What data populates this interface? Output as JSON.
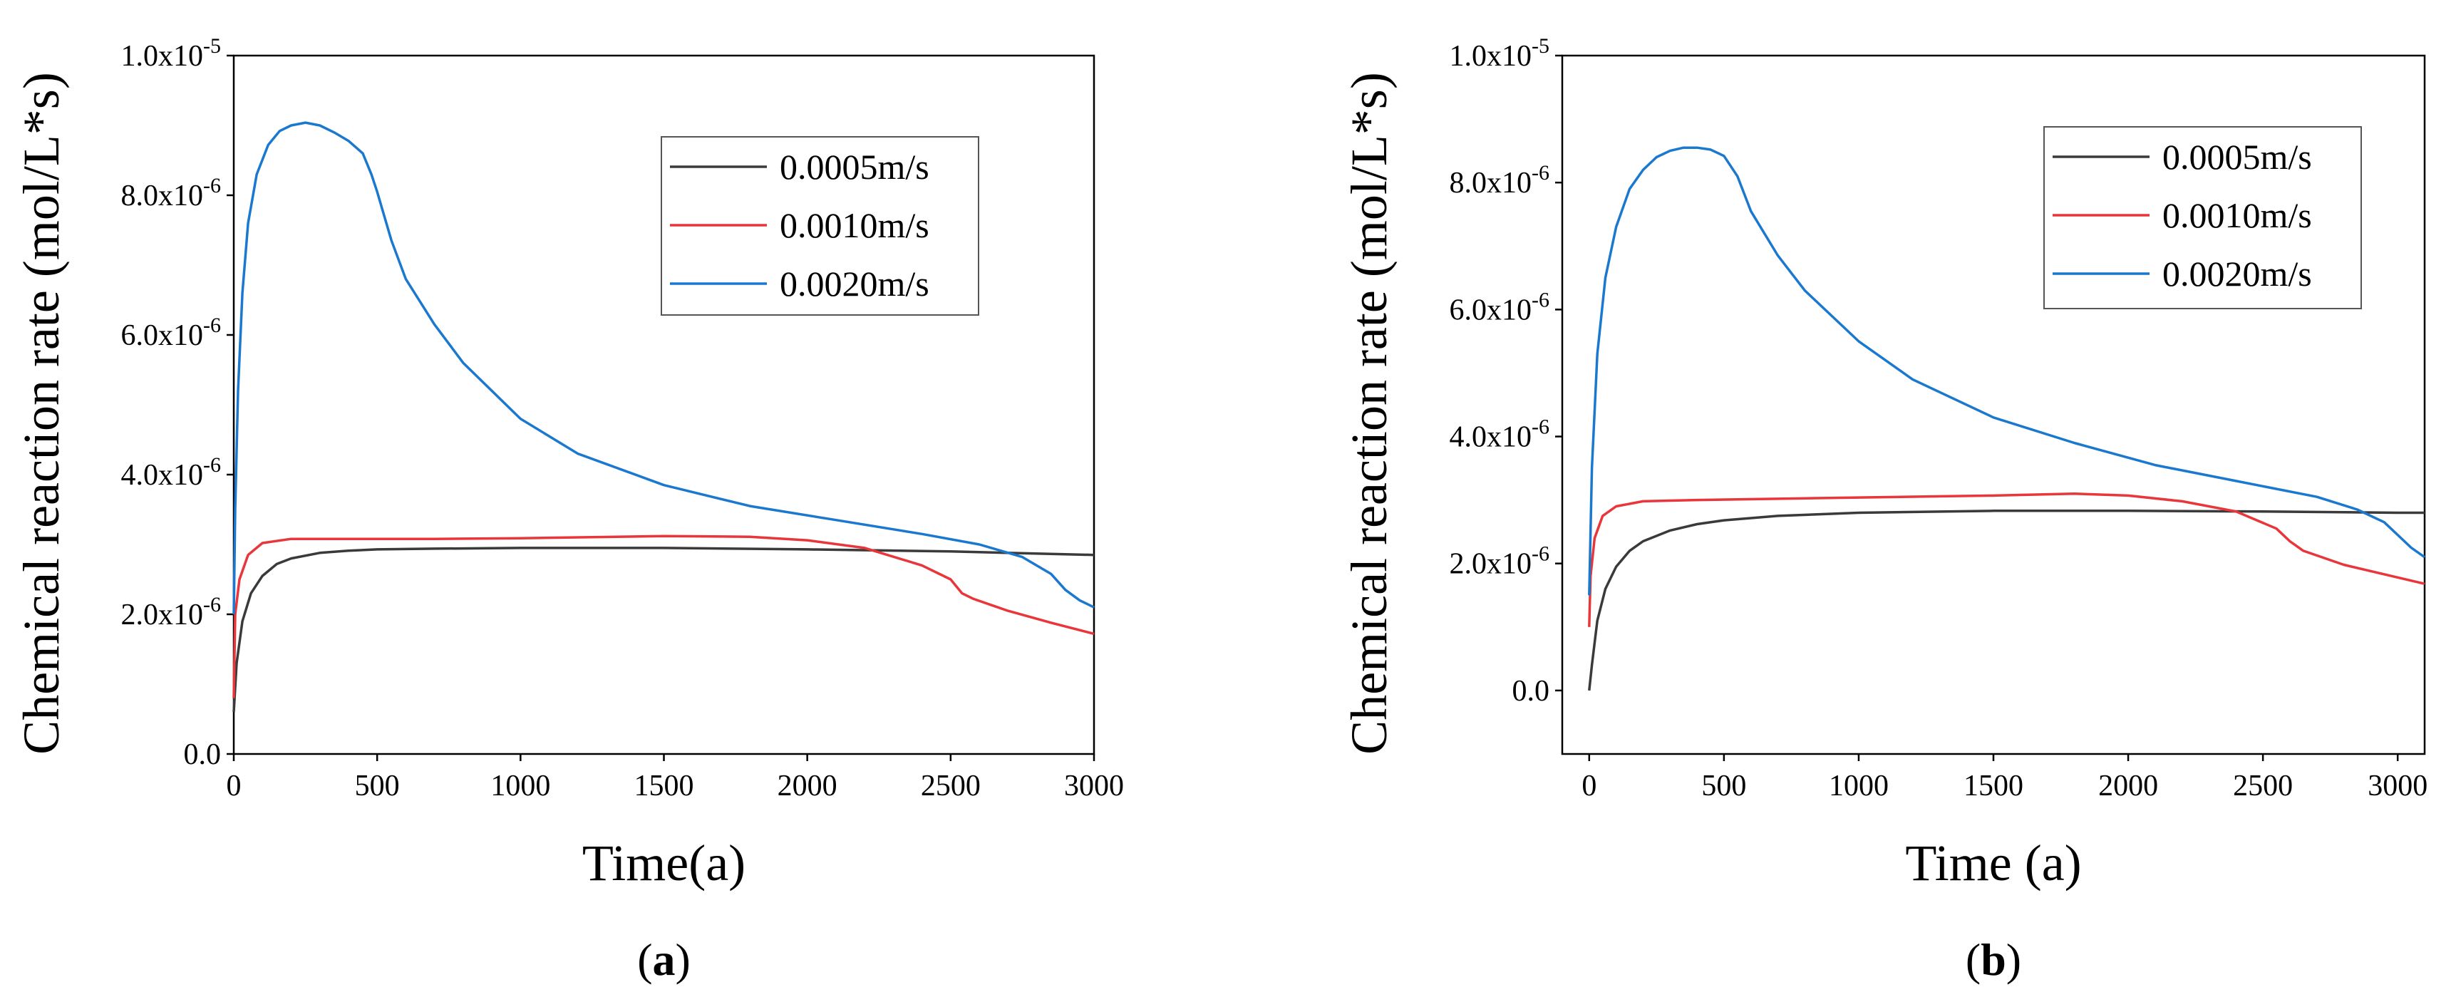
{
  "chart_data": [
    {
      "type": "line",
      "panel": "a",
      "panel_label_open": "(",
      "panel_label_letter": "a",
      "panel_label_close": ")",
      "xlabel": "Time(a)",
      "ylabel": "Chemical reaction rate (mol/L*s)",
      "xlim": [
        0,
        3000
      ],
      "ylim": [
        0,
        1e-05
      ],
      "xticks": [
        "0",
        "500",
        "1000",
        "1500",
        "2000",
        "2500",
        "3000"
      ],
      "yticks": [
        {
          "mant": "0.0",
          "exp": ""
        },
        {
          "mant": "2.0x10",
          "exp": "-6"
        },
        {
          "mant": "4.0x10",
          "exp": "-6"
        },
        {
          "mant": "6.0x10",
          "exp": "-6"
        },
        {
          "mant": "8.0x10",
          "exp": "-6"
        },
        {
          "mant": "1.0x10",
          "exp": "-5"
        }
      ],
      "legend_position": "top-right",
      "series": [
        {
          "name": "0.0005m/s",
          "color": "#3a3a3a",
          "x": [
            0,
            10,
            30,
            60,
            100,
            150,
            200,
            300,
            400,
            500,
            700,
            1000,
            1500,
            2000,
            2500,
            3000
          ],
          "y": [
            6e-07,
            1.3e-06,
            1.9e-06,
            2.3e-06,
            2.55e-06,
            2.72e-06,
            2.8e-06,
            2.88e-06,
            2.91e-06,
            2.93e-06,
            2.94e-06,
            2.95e-06,
            2.95e-06,
            2.93e-06,
            2.9e-06,
            2.85e-06
          ]
        },
        {
          "name": "0.0010m/s",
          "color": "#e8363a",
          "x": [
            0,
            5,
            20,
            50,
            100,
            200,
            400,
            700,
            1000,
            1500,
            1800,
            2000,
            2200,
            2400,
            2500,
            2540,
            2580,
            2700,
            2850,
            3000
          ],
          "y": [
            8e-07,
            2e-06,
            2.5e-06,
            2.85e-06,
            3.02e-06,
            3.08e-06,
            3.08e-06,
            3.08e-06,
            3.09e-06,
            3.12e-06,
            3.11e-06,
            3.06e-06,
            2.95e-06,
            2.7e-06,
            2.5e-06,
            2.3e-06,
            2.22e-06,
            2.05e-06,
            1.88e-06,
            1.72e-06
          ]
        },
        {
          "name": "0.0020m/s",
          "color": "#1b78cf",
          "x": [
            0,
            5,
            15,
            30,
            50,
            80,
            120,
            160,
            200,
            250,
            300,
            350,
            400,
            450,
            480,
            500,
            550,
            600,
            700,
            800,
            1000,
            1200,
            1500,
            1800,
            2100,
            2400,
            2600,
            2750,
            2850,
            2900,
            2950,
            3000
          ],
          "y": [
            2e-06,
            3.5e-06,
            5.2e-06,
            6.6e-06,
            7.6e-06,
            8.3e-06,
            8.72e-06,
            8.92e-06,
            9e-06,
            9.04e-06,
            9e-06,
            8.9e-06,
            8.78e-06,
            8.6e-06,
            8.3e-06,
            8.05e-06,
            7.35e-06,
            6.8e-06,
            6.15e-06,
            5.6e-06,
            4.8e-06,
            4.3e-06,
            3.85e-06,
            3.55e-06,
            3.35e-06,
            3.15e-06,
            3e-06,
            2.82e-06,
            2.58e-06,
            2.35e-06,
            2.2e-06,
            2.1e-06
          ]
        }
      ]
    },
    {
      "type": "line",
      "panel": "b",
      "panel_label_open": "(",
      "panel_label_letter": "b",
      "panel_label_close": ")",
      "xlabel": "Time (a)",
      "ylabel": "Chemical reaction rate (mol/L*s)",
      "xlim": [
        -100,
        3100
      ],
      "ylim": [
        -1e-06,
        1e-05
      ],
      "xticks": [
        "0",
        "500",
        "1000",
        "1500",
        "2000",
        "2500",
        "3000"
      ],
      "yticks": [
        {
          "mant": "0.0",
          "exp": ""
        },
        {
          "mant": "2.0x10",
          "exp": "-6"
        },
        {
          "mant": "4.0x10",
          "exp": "-6"
        },
        {
          "mant": "6.0x10",
          "exp": "-6"
        },
        {
          "mant": "8.0x10",
          "exp": "-6"
        },
        {
          "mant": "1.0x10",
          "exp": "-5"
        }
      ],
      "legend_position": "top-right",
      "series": [
        {
          "name": "0.0005m/s",
          "color": "#3a3a3a",
          "x": [
            0,
            10,
            30,
            60,
            100,
            150,
            200,
            300,
            400,
            500,
            700,
            1000,
            1500,
            2000,
            2500,
            3000,
            3100
          ],
          "y": [
            0.0,
            4e-07,
            1.1e-06,
            1.6e-06,
            1.95e-06,
            2.2e-06,
            2.35e-06,
            2.52e-06,
            2.62e-06,
            2.68e-06,
            2.75e-06,
            2.8e-06,
            2.83e-06,
            2.83e-06,
            2.82e-06,
            2.8e-06,
            2.8e-06
          ]
        },
        {
          "name": "0.0010m/s",
          "color": "#e8363a",
          "x": [
            0,
            5,
            20,
            50,
            100,
            200,
            400,
            700,
            1000,
            1500,
            1800,
            2000,
            2200,
            2400,
            2550,
            2600,
            2650,
            2800,
            3000,
            3100
          ],
          "y": [
            1e-06,
            1.8e-06,
            2.4e-06,
            2.75e-06,
            2.9e-06,
            2.98e-06,
            3e-06,
            3.02e-06,
            3.04e-06,
            3.07e-06,
            3.1e-06,
            3.07e-06,
            2.98e-06,
            2.82e-06,
            2.55e-06,
            2.35e-06,
            2.2e-06,
            1.98e-06,
            1.78e-06,
            1.68e-06
          ]
        },
        {
          "name": "0.0020m/s",
          "color": "#1b78cf",
          "x": [
            0,
            10,
            30,
            60,
            100,
            150,
            200,
            250,
            300,
            350,
            400,
            450,
            500,
            550,
            600,
            700,
            800,
            1000,
            1200,
            1500,
            1800,
            2100,
            2400,
            2700,
            2850,
            2950,
            3000,
            3050,
            3100
          ],
          "y": [
            1.5e-06,
            3.5e-06,
            5.3e-06,
            6.5e-06,
            7.3e-06,
            7.9e-06,
            8.2e-06,
            8.4e-06,
            8.5e-06,
            8.55e-06,
            8.55e-06,
            8.52e-06,
            8.42e-06,
            8.1e-06,
            7.55e-06,
            6.85e-06,
            6.3e-06,
            5.5e-06,
            4.9e-06,
            4.3e-06,
            3.9e-06,
            3.55e-06,
            3.3e-06,
            3.05e-06,
            2.85e-06,
            2.65e-06,
            2.45e-06,
            2.25e-06,
            2.1e-06
          ]
        }
      ]
    }
  ]
}
